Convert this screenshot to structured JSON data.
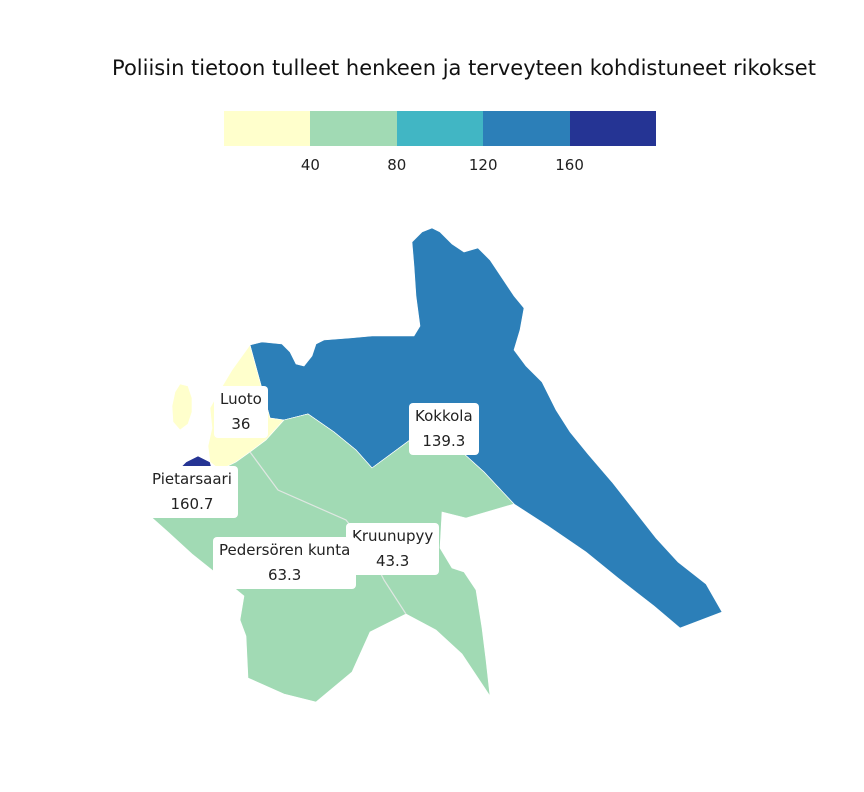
{
  "title": "Poliisin tietoon tulleet henkeen ja terveyteen kohdistuneet rikokset",
  "legend": {
    "bins": [
      {
        "color": "#ffffcc"
      },
      {
        "color": "#a1dab4"
      },
      {
        "color": "#41b6c4"
      },
      {
        "color": "#2c7fb8"
      },
      {
        "color": "#253494"
      }
    ],
    "ticks": [
      "40",
      "80",
      "120",
      "160"
    ]
  },
  "regions": [
    {
      "name": "Luoto",
      "value": "36",
      "color": "#ffffcc"
    },
    {
      "name": "Kokkola",
      "value": "139.3",
      "color": "#2c7fb8"
    },
    {
      "name": "Pietarsaari",
      "value": "160.7",
      "color": "#253494"
    },
    {
      "name": "Pedersören kunta",
      "value": "63.3",
      "color": "#a1dab4"
    },
    {
      "name": "Kruunupyy",
      "value": "43.3",
      "color": "#a1dab4"
    }
  ]
}
